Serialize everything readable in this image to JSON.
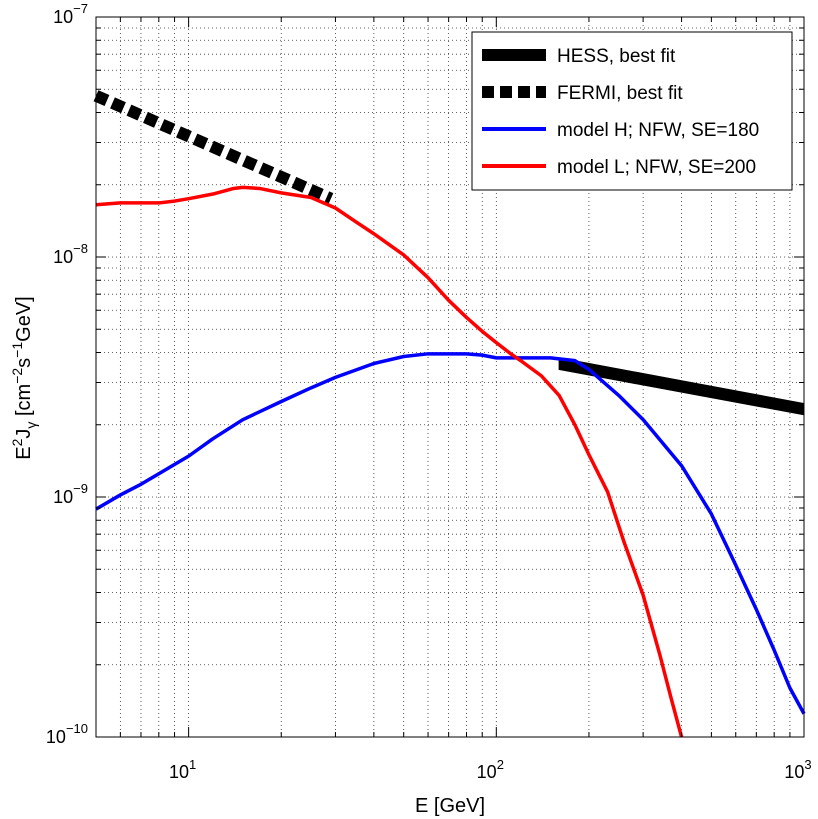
{
  "chart_data": {
    "type": "line",
    "xscale": "log",
    "yscale": "log",
    "xlim": [
      5,
      1000
    ],
    "ylim": [
      1e-10,
      1e-07
    ],
    "grid": "on (major and minor, dotted)",
    "legend_position": "top-right",
    "xlabel": {
      "base": "E [GeV]"
    },
    "ylabel": {
      "p1": "E",
      "p1_sup": "2",
      "p2": "J",
      "p2_sub": "γ",
      "p3": " [cm",
      "p3_sup": "−2",
      "p4": "s",
      "p4_sup": "−1",
      "p5": "GeV]"
    },
    "x_ticks": [
      {
        "value": 10,
        "base": "10",
        "exp": "1"
      },
      {
        "value": 100,
        "base": "10",
        "exp": "2"
      },
      {
        "value": 1000,
        "base": "10",
        "exp": "3"
      }
    ],
    "y_ticks": [
      {
        "value": 1e-10,
        "base": "10",
        "exp": "−10"
      },
      {
        "value": 1e-09,
        "base": "10",
        "exp": "−9"
      },
      {
        "value": 1e-08,
        "base": "10",
        "exp": "−8"
      },
      {
        "value": 1e-07,
        "base": "10",
        "exp": "−7"
      }
    ],
    "series": [
      {
        "name": "HESS, best fit",
        "color": "#000000",
        "style": "band",
        "x": [
          160,
          1000
        ],
        "upper": [
          3.8e-09,
          2.45e-09
        ],
        "lower": [
          3.4e-09,
          2.2e-09
        ]
      },
      {
        "name": "FERMI, best fit",
        "color": "#000000",
        "style": "dashed",
        "x": [
          5,
          29
        ],
        "y": [
          4.7e-08,
          1.75e-08
        ]
      },
      {
        "name": "model H; NFW, SE=180",
        "color": "#0000ff",
        "style": "solid",
        "x": [
          5,
          6,
          7,
          8,
          10,
          12,
          15,
          20,
          25,
          30,
          40,
          50,
          60,
          70,
          80,
          90,
          100,
          120,
          150,
          180,
          200,
          250,
          300,
          400,
          500,
          600,
          700,
          800,
          900,
          1000
        ],
        "y": [
          8.9e-10,
          1.02e-09,
          1.13e-09,
          1.25e-09,
          1.48e-09,
          1.75e-09,
          2.1e-09,
          2.5e-09,
          2.85e-09,
          3.15e-09,
          3.6e-09,
          3.85e-09,
          3.95e-09,
          3.95e-09,
          3.95e-09,
          3.9e-09,
          3.8e-09,
          3.8e-09,
          3.8e-09,
          3.7e-09,
          3.4e-09,
          2.65e-09,
          2.1e-09,
          1.35e-09,
          8.5e-10,
          5.2e-10,
          3.4e-10,
          2.3e-10,
          1.6e-10,
          1.25e-10
        ]
      },
      {
        "name": "model L; NFW, SE=200",
        "color": "#ff0000",
        "style": "solid",
        "x": [
          5,
          6,
          7,
          8,
          9,
          10,
          12,
          14,
          15,
          17,
          20,
          25,
          30,
          35,
          40,
          50,
          60,
          70,
          80,
          90,
          100,
          110,
          120,
          140,
          160,
          180,
          200,
          230,
          260,
          300,
          340,
          370,
          400
        ],
        "y": [
          1.65e-08,
          1.68e-08,
          1.68e-08,
          1.68e-08,
          1.71e-08,
          1.75e-08,
          1.83e-08,
          1.93e-08,
          1.95e-08,
          1.93e-08,
          1.85e-08,
          1.77e-08,
          1.6e-08,
          1.4e-08,
          1.25e-08,
          1.02e-08,
          8.2e-09,
          6.6e-09,
          5.6e-09,
          4.9e-09,
          4.4e-09,
          4e-09,
          3.7e-09,
          3.2e-09,
          2.65e-09,
          2e-09,
          1.5e-09,
          1.05e-09,
          6.5e-10,
          3.9e-10,
          2.2e-10,
          1.45e-10,
          1e-10
        ]
      }
    ]
  }
}
